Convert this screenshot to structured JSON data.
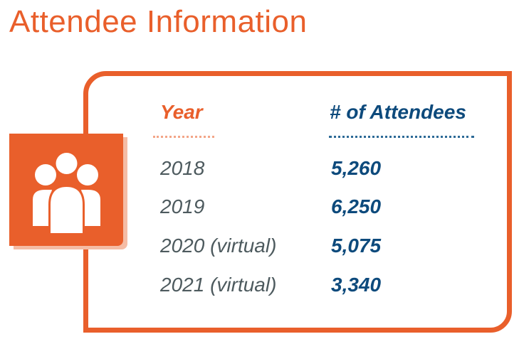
{
  "title": "Attendee Information",
  "icon": "people-group-icon",
  "colors": {
    "accent": "#e95f2b",
    "accent_light": "#f5bca5",
    "blue": "#0d4a7c",
    "gray": "#4d5a5e"
  },
  "table": {
    "headers": {
      "year": "Year",
      "attendees": "# of Attendees"
    },
    "rows": [
      {
        "year": "2018",
        "attendees": "5,260"
      },
      {
        "year": "2019",
        "attendees": "6,250"
      },
      {
        "year": "2020 (virtual)",
        "attendees": "5,075"
      },
      {
        "year": "2021 (virtual)",
        "attendees": "3,340"
      }
    ]
  }
}
